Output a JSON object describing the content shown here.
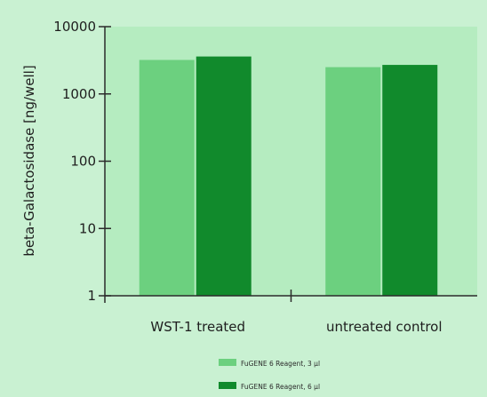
{
  "colors": {
    "page_bg": "#c9f1d2",
    "plot_bg": "#b5ecc0",
    "axis": "#2b2b2b",
    "series_light": "#6cd07f",
    "series_dark": "#118a2c"
  },
  "chart_data": {
    "type": "bar",
    "title": "",
    "xlabel": "",
    "ylabel": "beta-Galactosidase [ng/well]",
    "yscale": "log",
    "ylim": [
      1,
      10000
    ],
    "yticks": [
      {
        "value": 1,
        "label": "1"
      },
      {
        "value": 10,
        "label": "10"
      },
      {
        "value": 100,
        "label": "100"
      },
      {
        "value": 1000,
        "label": "1000"
      },
      {
        "value": 10000,
        "label": "10000"
      }
    ],
    "categories": [
      "WST-1 treated",
      "untreated control"
    ],
    "series": [
      {
        "name": "FuGENE 6 Reagent, 3 µl",
        "color": "#6cd07f",
        "values": [
          3200,
          2500
        ]
      },
      {
        "name": "FuGENE 6 Reagent, 6 µl",
        "color": "#118a2c",
        "values": [
          3600,
          2700
        ]
      }
    ],
    "grid": false,
    "legend_position": "bottom-center"
  }
}
